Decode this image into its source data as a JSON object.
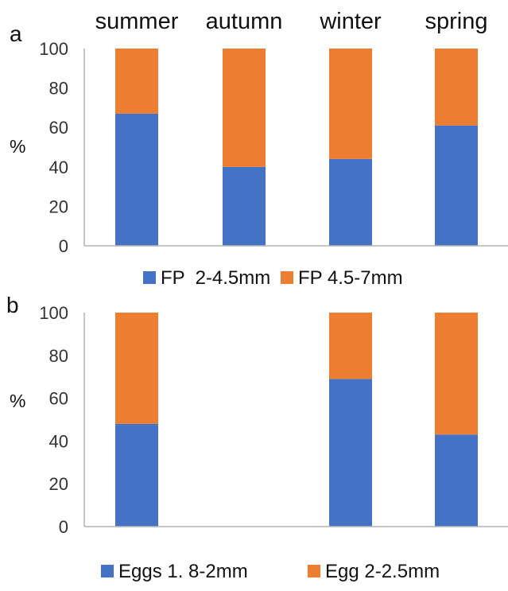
{
  "seasons": [
    "summer",
    "autumn",
    "winter",
    "spring"
  ],
  "colors": {
    "series1": "#4472c4",
    "series2": "#ed7d31",
    "axis": "#b3b3b3",
    "text": "#111111"
  },
  "chart_data": [
    {
      "type": "bar",
      "stacked": true,
      "panel": "a",
      "categories": [
        "summer",
        "autumn",
        "winter",
        "spring"
      ],
      "series": [
        {
          "name": "FP  2-4.5mm",
          "values": [
            67,
            40,
            44,
            61
          ]
        },
        {
          "name": "FP 4.5-7mm",
          "values": [
            33,
            60,
            56,
            39
          ]
        }
      ],
      "ylabel": "%",
      "ylim": [
        0,
        100
      ],
      "yticks": [
        0,
        20,
        40,
        60,
        80,
        100
      ],
      "grid": false,
      "legend": "bottom"
    },
    {
      "type": "bar",
      "stacked": true,
      "panel": "b",
      "categories": [
        "summer",
        "autumn",
        "winter",
        "spring"
      ],
      "series": [
        {
          "name": "Eggs 1. 8-2mm",
          "values": [
            48,
            0,
            69,
            43
          ]
        },
        {
          "name": "Egg 2-2.5mm",
          "values": [
            52,
            0,
            31,
            57
          ]
        }
      ],
      "ylabel": "%",
      "ylim": [
        0,
        100
      ],
      "yticks": [
        0,
        20,
        40,
        60,
        80,
        100
      ],
      "grid": false,
      "legend": "bottom"
    }
  ]
}
